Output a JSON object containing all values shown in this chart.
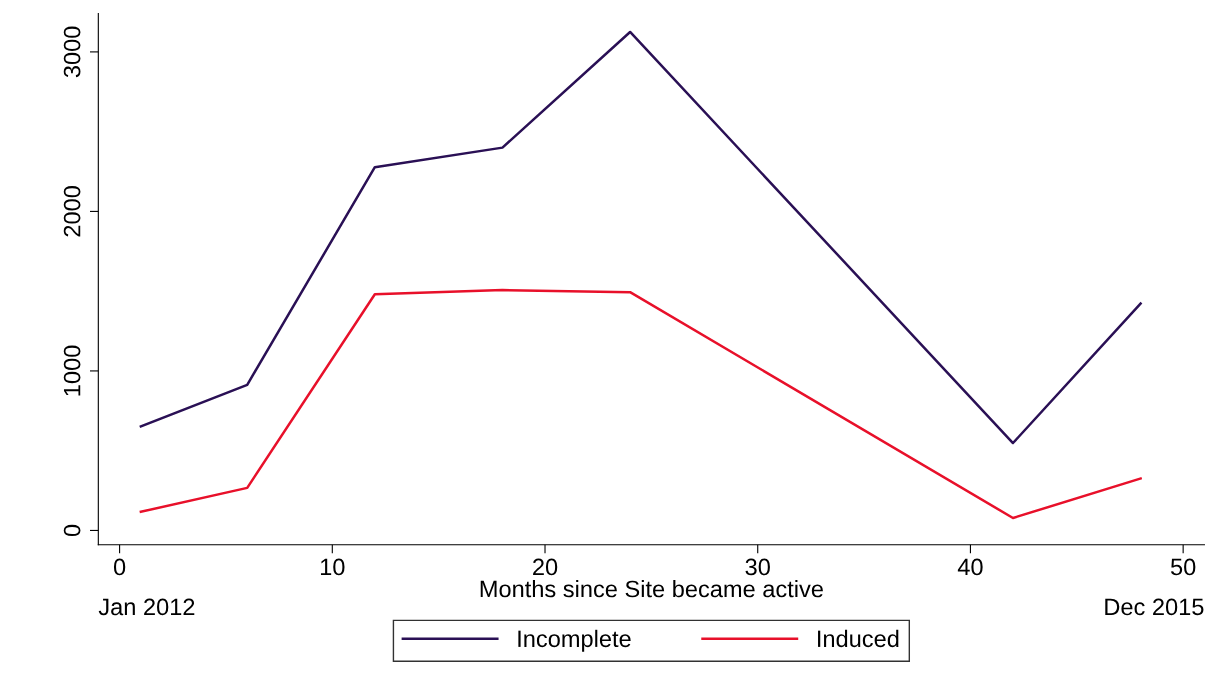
{
  "chart_data": {
    "type": "line",
    "xlabel": "Months since Site became active",
    "x": [
      1,
      6,
      12,
      18,
      24,
      42,
      48
    ],
    "series": [
      {
        "name": "Incomplete",
        "color": "#2a1055",
        "values": [
          652,
          913,
          2277,
          2400,
          3125,
          548,
          1422
        ]
      },
      {
        "name": "Induced",
        "color": "#e8102a",
        "values": [
          117,
          267,
          1481,
          1507,
          1494,
          78,
          326
        ]
      }
    ],
    "xlim": [
      -1,
      51
    ],
    "xticks": [
      0,
      10,
      20,
      30,
      40,
      50
    ],
    "ylim": [
      -90,
      3240
    ],
    "yticks": [
      0,
      1000,
      2000,
      3000
    ],
    "annotations": [
      "Jan 2012",
      "Dec 2015"
    ],
    "grid": false,
    "legend": "bottom",
    "marker": "none",
    "line_style": "solid"
  }
}
